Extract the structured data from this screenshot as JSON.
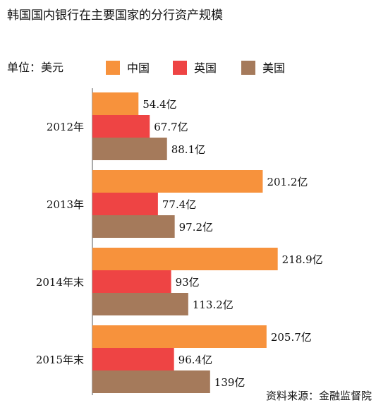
{
  "chart_data": {
    "type": "bar",
    "orientation": "horizontal",
    "title": "韩国国内银行在主要国家的分行资产规模",
    "unit_label": "单位：美元",
    "source": "资料来源：金融监督院",
    "value_suffix": "亿",
    "categories": [
      "2012年",
      "2013年",
      "2014年末",
      "2015年末"
    ],
    "series": [
      {
        "name": "中国",
        "color": "#F7923C",
        "values": [
          54.4,
          201.2,
          218.9,
          205.7
        ],
        "labels": [
          "54.4亿",
          "201.2亿",
          "218.9亿",
          "205.7亿"
        ]
      },
      {
        "name": "英国",
        "color": "#EE4444",
        "values": [
          67.7,
          77.4,
          93,
          96.4
        ],
        "labels": [
          "67.7亿",
          "77.4亿",
          "93亿",
          "96.4亿"
        ]
      },
      {
        "name": "美国",
        "color": "#A57A5B",
        "values": [
          88.1,
          97.2,
          113.2,
          139
        ],
        "labels": [
          "88.1亿",
          "97.2亿",
          "113.2亿",
          "139亿"
        ]
      }
    ],
    "legend_position": "top",
    "grid": false
  }
}
